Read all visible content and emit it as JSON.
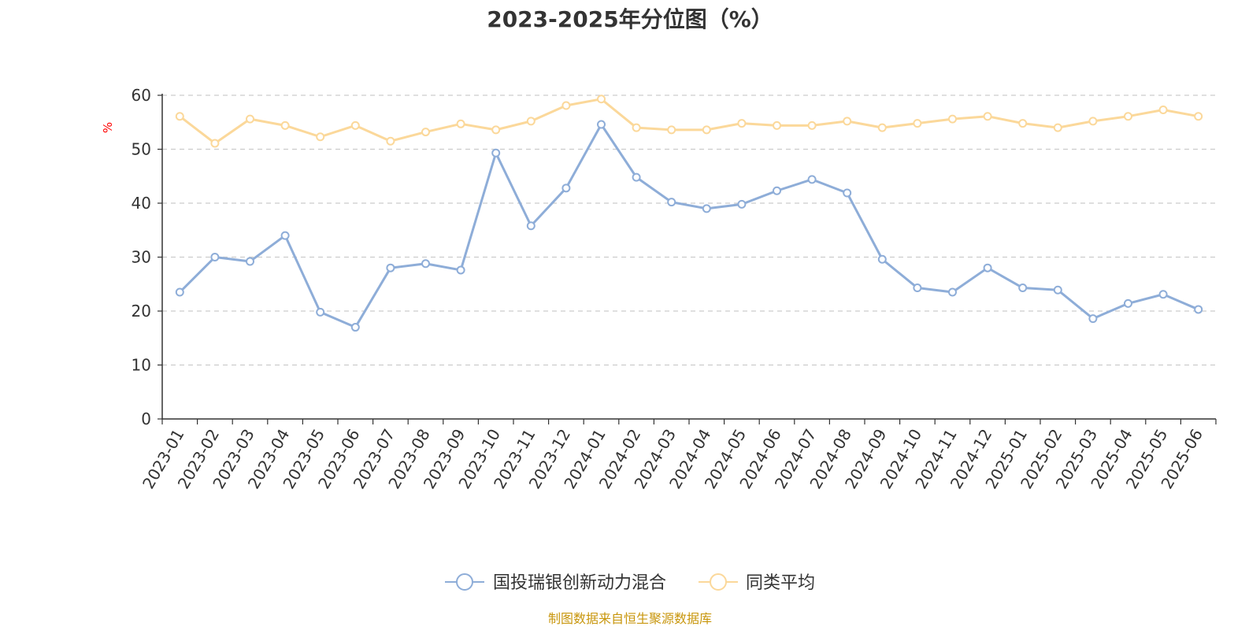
{
  "chart_data": {
    "type": "line",
    "title": "2023-2025年分位图（%）",
    "ylabel": "%",
    "ylim": [
      0,
      60
    ],
    "yticks": [
      0,
      10,
      20,
      30,
      40,
      50,
      60
    ],
    "grid": true,
    "legend_position": "bottom",
    "x": [
      "2023-01",
      "2023-02",
      "2023-03",
      "2023-04",
      "2023-05",
      "2023-06",
      "2023-07",
      "2023-08",
      "2023-09",
      "2023-10",
      "2023-11",
      "2023-12",
      "2024-01",
      "2024-02",
      "2024-03",
      "2024-04",
      "2024-05",
      "2024-06",
      "2024-07",
      "2024-08",
      "2024-09",
      "2024-10",
      "2024-11",
      "2024-12",
      "2025-01",
      "2025-02",
      "2025-03",
      "2025-04",
      "2025-05",
      "2025-06"
    ],
    "series": [
      {
        "name": "国投瑞银创新动力混合",
        "color": "#8eadd8",
        "values": [
          23.5,
          30.0,
          29.2,
          34.0,
          19.8,
          17.0,
          28.0,
          28.8,
          27.6,
          49.3,
          35.8,
          42.8,
          54.6,
          44.8,
          40.2,
          39.0,
          39.8,
          42.3,
          44.4,
          41.9,
          29.6,
          24.3,
          23.5,
          28.0,
          24.3,
          23.9,
          18.6,
          21.4,
          23.1,
          20.3
        ]
      },
      {
        "name": "同类平均",
        "color": "#fbd89a",
        "values": [
          56.1,
          51.1,
          55.6,
          54.4,
          52.3,
          54.4,
          51.5,
          53.2,
          54.7,
          53.6,
          55.2,
          58.1,
          59.3,
          54.0,
          53.6,
          53.6,
          54.8,
          54.4,
          54.4,
          55.2,
          54.0,
          54.8,
          55.6,
          56.1,
          54.8,
          54.0,
          55.2,
          56.1,
          57.3,
          56.1
        ]
      }
    ],
    "source": "制图数据来自恒生聚源数据库"
  }
}
